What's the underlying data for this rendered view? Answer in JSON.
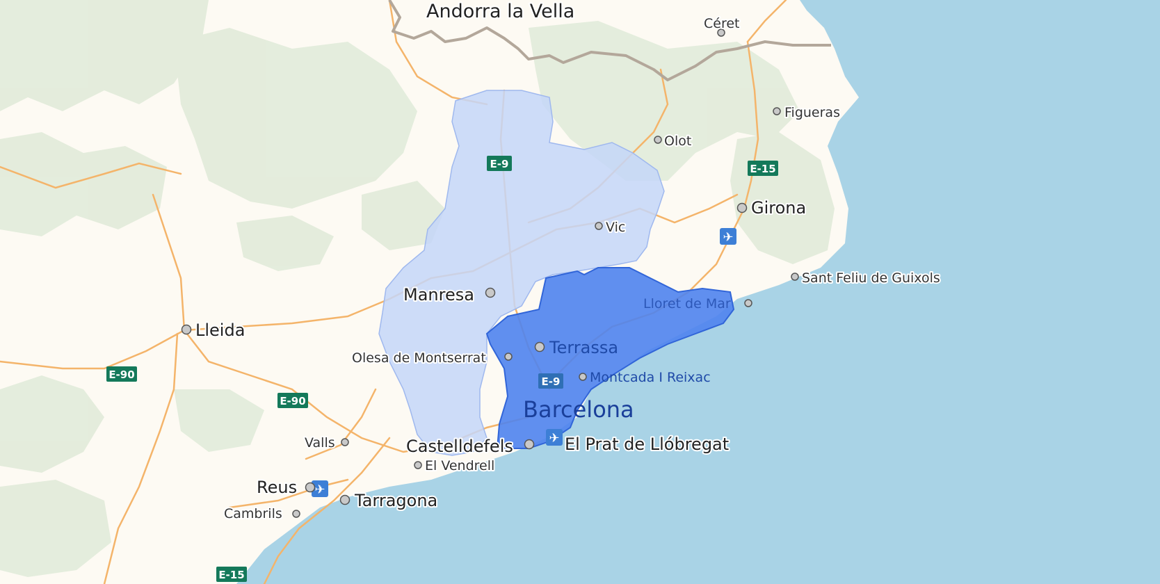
{
  "map": {
    "colors": {
      "land": "#fdfaf3",
      "forest": "#e3ecdb",
      "sea": "#a9d3e6",
      "road": "#f4b46a",
      "border": "#b3a79a",
      "region_light": "#c4d6f8",
      "region_dark": "#4f83ee"
    },
    "labels": {
      "andorra": "Andorra la Vella",
      "ceret": "Céret",
      "figueras": "Figueras",
      "olot": "Olot",
      "girona": "Girona",
      "vic": "Vic",
      "sant_feliu": "Sant Feliu de Guixols",
      "lloret": "Lloret de Mar",
      "manresa": "Manresa",
      "lleida": "Lleida",
      "terrassa": "Terrassa",
      "olesa": "Olesa de Montserrat",
      "montcada": "Montcada I Reixac",
      "barcelona": "Barcelona",
      "castelldefels": "Castelldefels",
      "el_prat": "El Prat de Llóbregat",
      "valls": "Valls",
      "el_vendrell": "El Vendrell",
      "reus": "Reus",
      "tarragona": "Tarragona",
      "cambrils": "Cambrils"
    },
    "roads": {
      "e9": "E-9",
      "e15": "E-15",
      "e90": "E-90"
    },
    "icons": {
      "airport": "airplane-icon",
      "city": "city-dot-icon"
    }
  }
}
